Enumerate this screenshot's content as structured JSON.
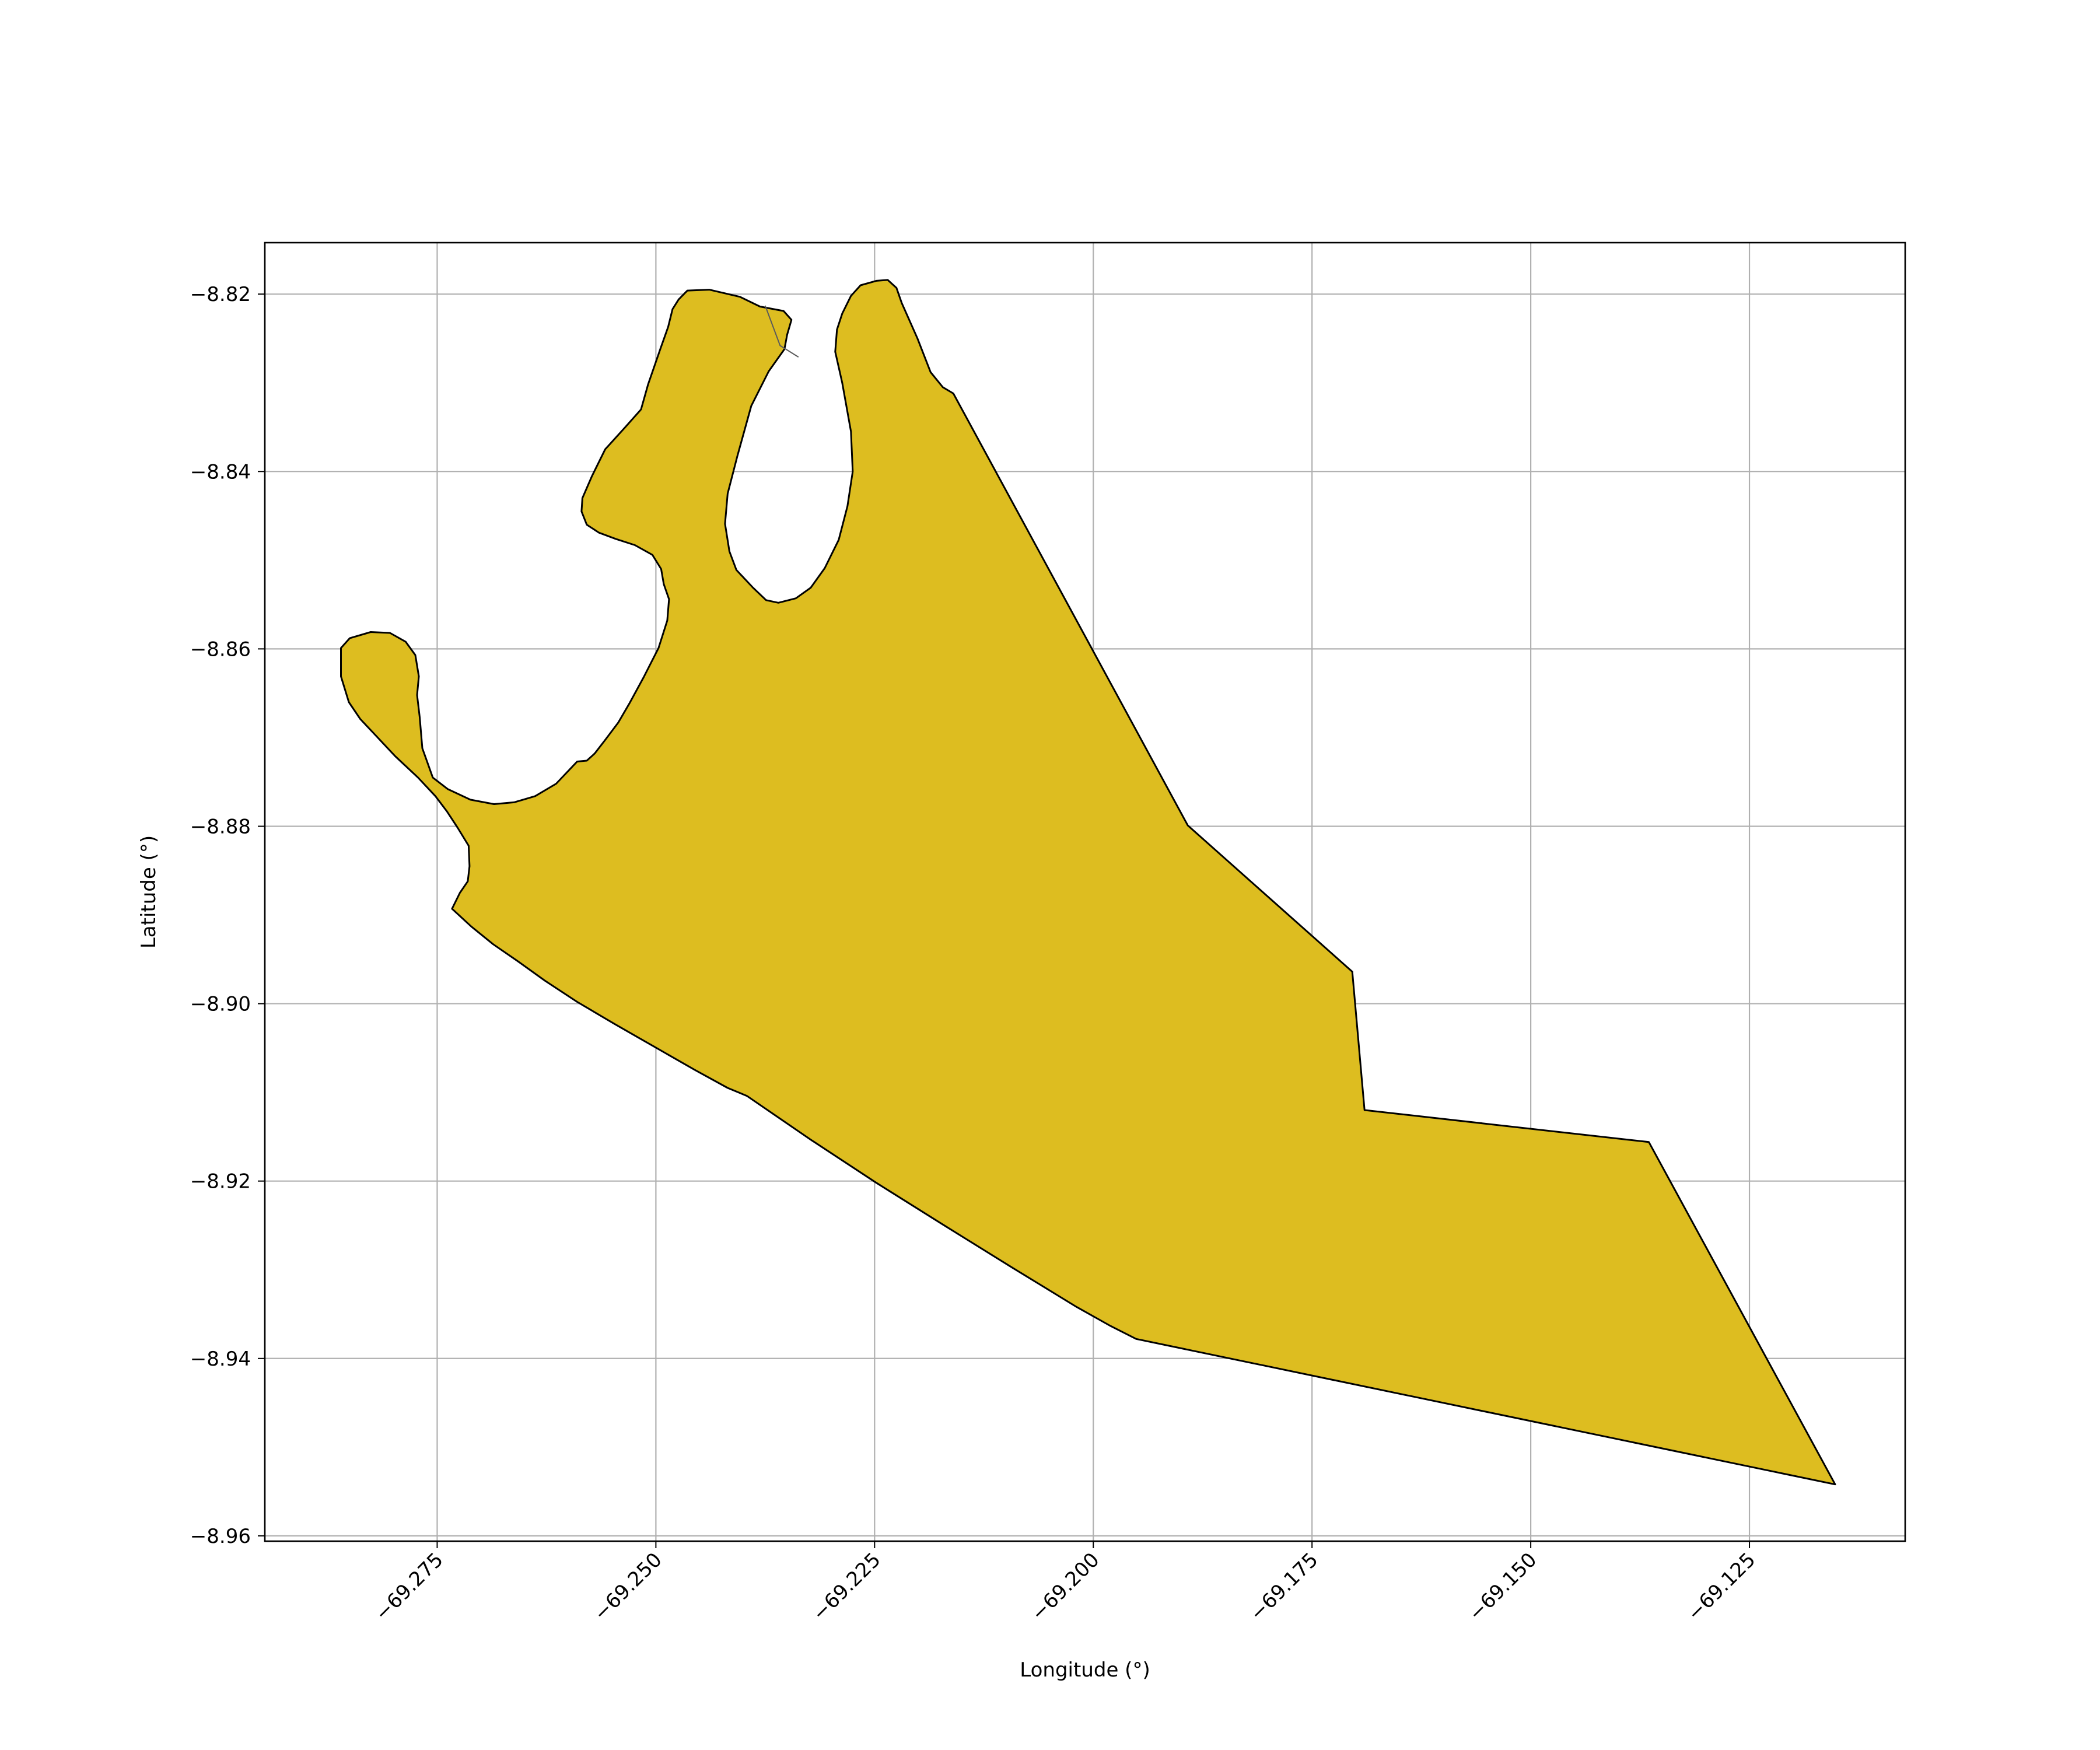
{
  "chart_data": {
    "type": "area",
    "title": "",
    "xlabel": "Longitude (°)",
    "ylabel": "Latitude (°)",
    "xlim": [
      -69.2947,
      -69.1072
    ],
    "ylim": [
      -8.9606,
      -8.8142
    ],
    "xticks": [
      -69.275,
      -69.25,
      -69.225,
      -69.2,
      -69.175,
      -69.15,
      -69.125
    ],
    "xtick_labels": [
      "−69.275",
      "−69.250",
      "−69.225",
      "−69.200",
      "−69.175",
      "−69.150",
      "−69.125"
    ],
    "yticks": [
      -8.82,
      -8.84,
      -8.86,
      -8.88,
      -8.9,
      -8.92,
      -8.94,
      -8.96
    ],
    "ytick_labels": [
      "−8.82",
      "−8.84",
      "−8.86",
      "−8.88",
      "−8.90",
      "−8.92",
      "−8.94",
      "−8.96"
    ],
    "grid": true,
    "fill_color": "#DDBD20",
    "edge_color": "#000000",
    "polygon": [
      [
        -69.2733,
        -8.8893
      ],
      [
        -69.2724,
        -8.8875
      ],
      [
        -69.2715,
        -8.8862
      ],
      [
        -69.2713,
        -8.8845
      ],
      [
        -69.2714,
        -8.8822
      ],
      [
        -69.2727,
        -8.8801
      ],
      [
        -69.2739,
        -8.8783
      ],
      [
        -69.2752,
        -8.8766
      ],
      [
        -69.2772,
        -8.8745
      ],
      [
        -69.2798,
        -8.8721
      ],
      [
        -69.2818,
        -8.87
      ],
      [
        -69.2838,
        -8.8679
      ],
      [
        -69.2851,
        -8.866
      ],
      [
        -69.286,
        -8.8631
      ],
      [
        -69.286,
        -8.8599
      ],
      [
        -69.285,
        -8.8588
      ],
      [
        -69.2826,
        -8.8581
      ],
      [
        -69.2804,
        -8.8582
      ],
      [
        -69.2786,
        -8.8592
      ],
      [
        -69.2775,
        -8.8607
      ],
      [
        -69.2771,
        -8.8631
      ],
      [
        -69.2773,
        -8.8652
      ],
      [
        -69.277,
        -8.8677
      ],
      [
        -69.2767,
        -8.8712
      ],
      [
        -69.2755,
        -8.8745
      ],
      [
        -69.2738,
        -8.8758
      ],
      [
        -69.2712,
        -8.877
      ],
      [
        -69.2685,
        -8.8775
      ],
      [
        -69.2662,
        -8.8773
      ],
      [
        -69.2638,
        -8.8766
      ],
      [
        -69.2614,
        -8.8752
      ],
      [
        -69.259,
        -8.8727
      ],
      [
        -69.2579,
        -8.8726
      ],
      [
        -69.257,
        -8.8718
      ],
      [
        -69.2559,
        -8.8704
      ],
      [
        -69.2543,
        -8.8683
      ],
      [
        -69.253,
        -8.8661
      ],
      [
        -69.2514,
        -8.8632
      ],
      [
        -69.2497,
        -8.8599
      ],
      [
        -69.2487,
        -8.8568
      ],
      [
        -69.2485,
        -8.8544
      ],
      [
        -69.2491,
        -8.8527
      ],
      [
        -69.2494,
        -8.851
      ],
      [
        -69.2504,
        -8.8494
      ],
      [
        -69.2524,
        -8.8483
      ],
      [
        -69.2546,
        -8.8476
      ],
      [
        -69.2565,
        -8.8469
      ],
      [
        -69.2579,
        -8.846
      ],
      [
        -69.2585,
        -8.8445
      ],
      [
        -69.2584,
        -8.843
      ],
      [
        -69.2573,
        -8.8405
      ],
      [
        -69.2558,
        -8.8375
      ],
      [
        -69.2535,
        -8.835
      ],
      [
        -69.2517,
        -8.833
      ],
      [
        -69.2509,
        -8.8302
      ],
      [
        -69.2495,
        -8.8262
      ],
      [
        -69.2486,
        -8.8237
      ],
      [
        -69.2481,
        -8.8217
      ],
      [
        -69.2474,
        -8.8206
      ],
      [
        -69.2464,
        -8.8196
      ],
      [
        -69.2439,
        -8.8195
      ],
      [
        -69.2404,
        -8.8203
      ],
      [
        -69.2381,
        -8.8214
      ],
      [
        -69.2354,
        -8.8219
      ],
      [
        -69.2345,
        -8.8229
      ],
      [
        -69.235,
        -8.8246
      ],
      [
        -69.2353,
        -8.8262
      ],
      [
        -69.2371,
        -8.8287
      ],
      [
        -69.2391,
        -8.8326
      ],
      [
        -69.2407,
        -8.8383
      ],
      [
        -69.2418,
        -8.8425
      ],
      [
        -69.2421,
        -8.8459
      ],
      [
        -69.2416,
        -8.849
      ],
      [
        -69.2408,
        -8.8511
      ],
      [
        -69.2389,
        -8.8531
      ],
      [
        -69.2374,
        -8.8545
      ],
      [
        -69.236,
        -8.8548
      ],
      [
        -69.234,
        -8.8543
      ],
      [
        -69.2323,
        -8.8531
      ],
      [
        -69.2307,
        -8.8509
      ],
      [
        -69.2291,
        -8.8477
      ],
      [
        -69.2281,
        -8.8439
      ],
      [
        -69.2275,
        -8.84
      ],
      [
        -69.2277,
        -8.8355
      ],
      [
        -69.2287,
        -8.83
      ],
      [
        -69.2295,
        -8.8265
      ],
      [
        -69.2293,
        -8.824
      ],
      [
        -69.2287,
        -8.8222
      ],
      [
        -69.2277,
        -8.8202
      ],
      [
        -69.2266,
        -8.819
      ],
      [
        -69.2248,
        -8.8185
      ],
      [
        -69.2235,
        -8.8184
      ],
      [
        -69.2225,
        -8.8193
      ],
      [
        -69.2219,
        -8.821
      ],
      [
        -69.2201,
        -8.825
      ],
      [
        -69.2186,
        -8.8288
      ],
      [
        -69.2172,
        -8.8305
      ],
      [
        -69.216,
        -8.8312
      ],
      [
        -69.1892,
        -8.8799
      ],
      [
        -69.1704,
        -8.8964
      ],
      [
        -69.169,
        -8.912
      ],
      [
        -69.1365,
        -8.9156
      ],
      [
        -69.1152,
        -8.9542
      ],
      [
        -69.1951,
        -8.9378
      ],
      [
        -69.1981,
        -8.9363
      ],
      [
        -69.2019,
        -8.9342
      ],
      [
        -69.2092,
        -8.9298
      ],
      [
        -69.2172,
        -8.9249
      ],
      [
        -69.2248,
        -8.9202
      ],
      [
        -69.2322,
        -8.9154
      ],
      [
        -69.2396,
        -8.9104
      ],
      [
        -69.2418,
        -8.9095
      ],
      [
        -69.2455,
        -8.9075
      ],
      [
        -69.2501,
        -8.9049
      ],
      [
        -69.2547,
        -8.9023
      ],
      [
        -69.259,
        -8.8998
      ],
      [
        -69.2627,
        -8.8974
      ],
      [
        -69.2658,
        -8.8952
      ],
      [
        -69.2686,
        -8.8933
      ],
      [
        -69.2711,
        -8.8913
      ]
    ],
    "internal_line": [
      [
        -69.2375,
        -8.8213
      ],
      [
        -69.2358,
        -8.8258
      ],
      [
        -69.2337,
        -8.8271
      ]
    ]
  }
}
